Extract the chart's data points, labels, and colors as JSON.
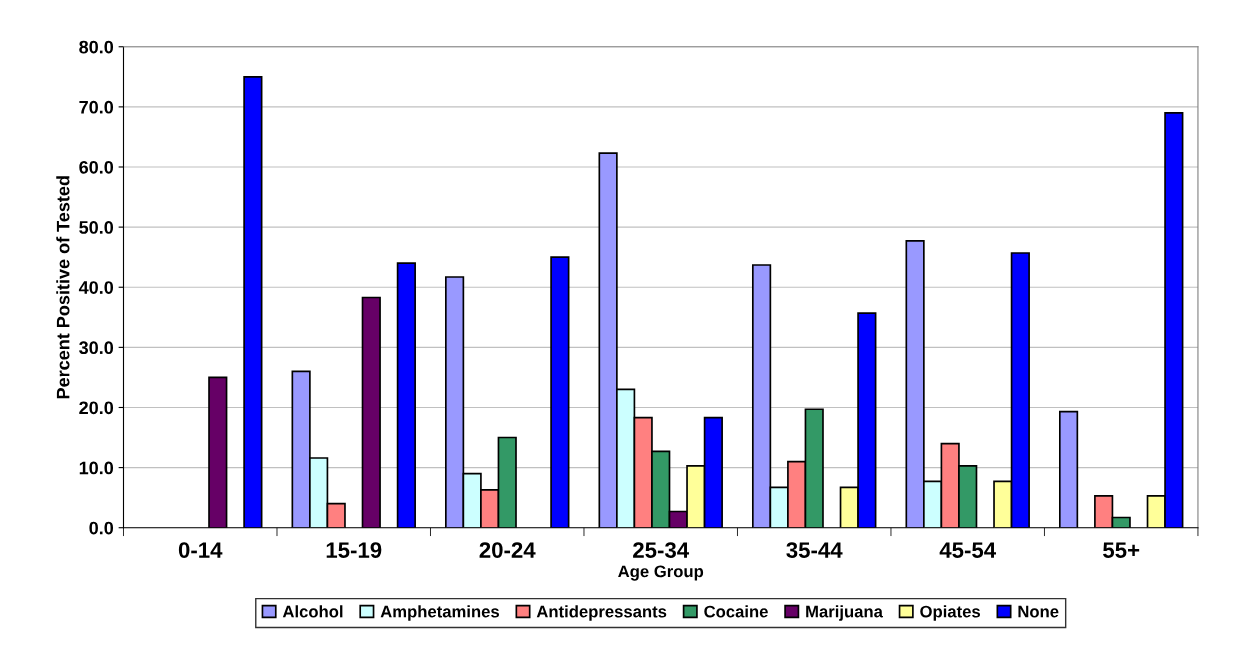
{
  "chart_data": {
    "type": "bar",
    "xlabel": "Age Group",
    "ylabel": "Percent Positive of Tested",
    "categories": [
      "0-14",
      "15-19",
      "20-24",
      "25-34",
      "35-44",
      "45-54",
      "55+"
    ],
    "series": [
      {
        "name": "Alcohol",
        "color": "#9999ff",
        "values": [
          null,
          26.0,
          41.7,
          62.3,
          43.7,
          47.7,
          19.3
        ]
      },
      {
        "name": "Amphetamines",
        "color": "#ccffff",
        "values": [
          null,
          11.6,
          9.0,
          23.0,
          6.7,
          7.7,
          null
        ]
      },
      {
        "name": "Antidepressants",
        "color": "#ff8080",
        "values": [
          null,
          4.0,
          6.3,
          18.3,
          11.0,
          14.0,
          5.3
        ]
      },
      {
        "name": "Cocaine",
        "color": "#339966",
        "values": [
          null,
          null,
          15.0,
          12.7,
          19.7,
          10.3,
          1.7
        ]
      },
      {
        "name": "Marijuana",
        "color": "#660066",
        "values": [
          25.0,
          38.3,
          null,
          2.7,
          null,
          null,
          null
        ]
      },
      {
        "name": "Opiates",
        "color": "#ffff99",
        "values": [
          null,
          null,
          null,
          10.3,
          6.7,
          7.7,
          5.3
        ]
      },
      {
        "name": "None",
        "color": "#0000ff",
        "values": [
          75.0,
          44.0,
          45.0,
          18.3,
          35.7,
          45.7,
          69.0
        ]
      }
    ],
    "ylim": [
      0,
      80
    ],
    "yticks": [
      {
        "value": 0,
        "label": "0.0"
      },
      {
        "value": 10,
        "label": "10.0"
      },
      {
        "value": 20,
        "label": "20.0"
      },
      {
        "value": 30,
        "label": "30.0"
      },
      {
        "value": 40,
        "label": "40.0"
      },
      {
        "value": 50,
        "label": "50.0"
      },
      {
        "value": 60,
        "label": "60.0"
      },
      {
        "value": 70,
        "label": "70.0"
      },
      {
        "value": 80,
        "label": "80.0"
      }
    ],
    "grid": "y",
    "legend": "bottom"
  }
}
